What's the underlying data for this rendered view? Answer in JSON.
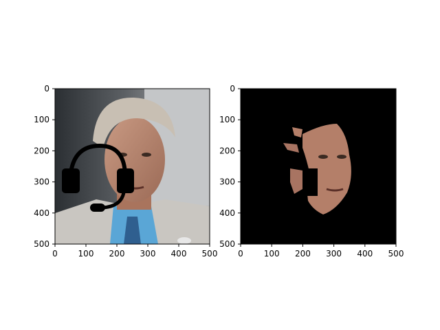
{
  "chart_data": [
    {
      "type": "image",
      "panel": "left",
      "title": "",
      "xlabel": "",
      "ylabel": "",
      "xlim": [
        0,
        500
      ],
      "ylim": [
        500,
        0
      ],
      "xticks": [
        0,
        100,
        200,
        300,
        400,
        500
      ],
      "yticks": [
        0,
        100,
        200,
        300,
        400,
        500
      ],
      "content": "photo of a grey-haired man in a suit with a black headset icon overlay"
    },
    {
      "type": "image",
      "panel": "right",
      "title": "",
      "xlabel": "",
      "ylabel": "",
      "xlim": [
        0,
        500
      ],
      "ylim": [
        500,
        0
      ],
      "xticks": [
        0,
        100,
        200,
        300,
        400,
        500
      ],
      "yticks": [
        0,
        100,
        200,
        300,
        400,
        500
      ],
      "content": "segmented skin region of the face on black background"
    }
  ]
}
